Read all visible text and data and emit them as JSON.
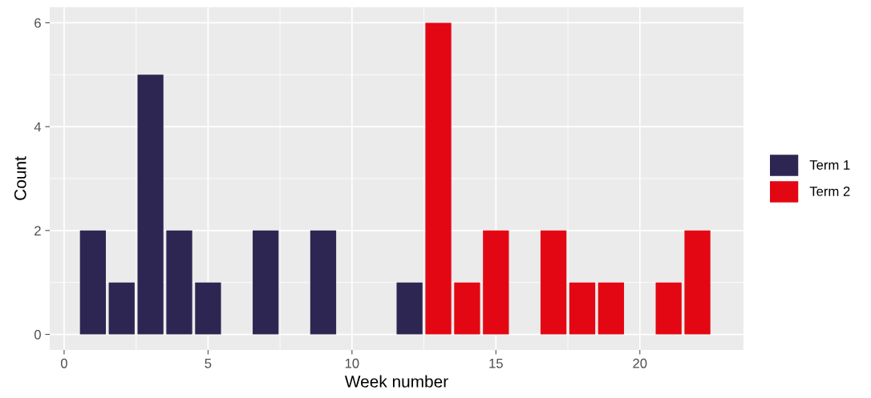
{
  "chart_data": {
    "type": "bar",
    "xlabel": "Week number",
    "ylabel": "Count",
    "series": [
      {
        "name": "Term 1",
        "color": "#2e2652",
        "x": [
          1,
          2,
          3,
          4,
          5,
          7,
          9,
          12
        ],
        "values": [
          2,
          1,
          5,
          2,
          1,
          2,
          2,
          1
        ]
      },
      {
        "name": "Term 2",
        "color": "#e30713",
        "x": [
          13,
          14,
          15,
          17,
          18,
          19,
          21,
          22
        ],
        "values": [
          6,
          1,
          2,
          2,
          1,
          1,
          1,
          2
        ]
      }
    ],
    "xlim": [
      -0.5,
      23.6
    ],
    "xticks": [
      0,
      5,
      10,
      15,
      20
    ],
    "ylim": [
      -0.3,
      6.3
    ],
    "yticks": [
      0,
      2,
      4,
      6
    ],
    "grid": true,
    "legend": "right"
  }
}
